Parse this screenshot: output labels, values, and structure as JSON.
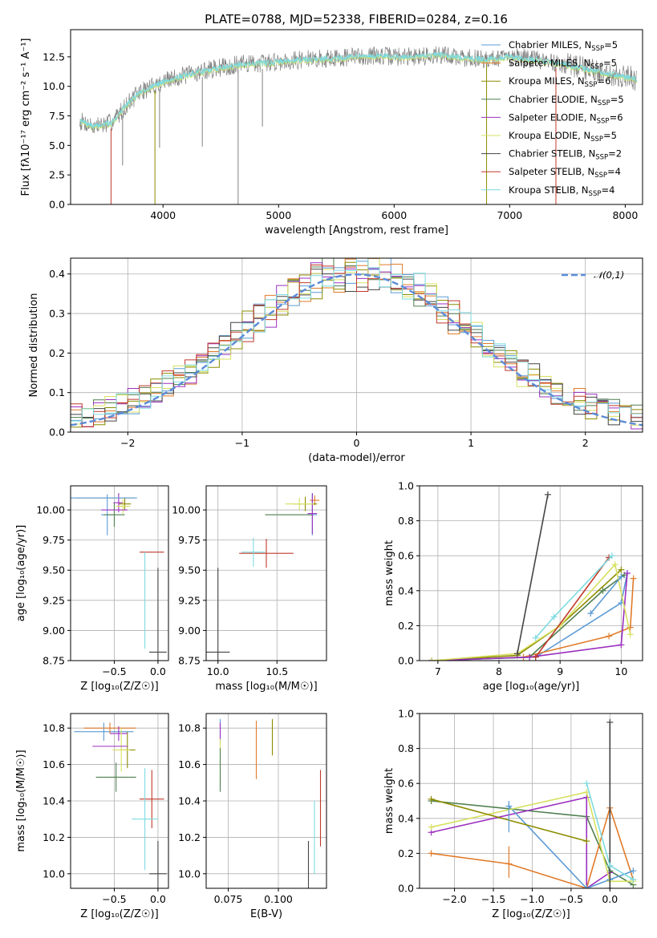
{
  "figure": {
    "title": "PLATE=0788, MJD=52338, FIBERID=0284, z=0.16"
  },
  "models": [
    {
      "name": "Chabrier MILES",
      "nssp": "5",
      "color": "#5b9bd5"
    },
    {
      "name": "Salpeter MILES",
      "nssp": "5",
      "color": "#e07b2a"
    },
    {
      "name": "Kroupa MILES",
      "nssp": "6",
      "color": "#8c8c00"
    },
    {
      "name": "Chabrier ELODIE",
      "nssp": "5",
      "color": "#4f7f4f"
    },
    {
      "name": "Salpeter ELODIE",
      "nssp": "6",
      "color": "#9b30c0"
    },
    {
      "name": "Kroupa ELODIE",
      "nssp": "5",
      "color": "#d7e060"
    },
    {
      "name": "Chabrier STELIB",
      "nssp": "2",
      "color": "#444444"
    },
    {
      "name": "Salpeter STELIB",
      "nssp": "4",
      "color": "#c0392b"
    },
    {
      "name": "Kroupa STELIB",
      "nssp": "4",
      "color": "#7ddbe0"
    }
  ],
  "chart_data": [
    {
      "id": "spectrum",
      "type": "line",
      "xlabel": "wavelength [Angstrom, rest frame]",
      "ylabel": "Flux [fλ10⁻¹⁷ erg cm⁻² s⁻¹ A⁻¹]",
      "xlim": [
        3200,
        8150
      ],
      "ylim": [
        0,
        14.8
      ],
      "xticks": [
        4000,
        5000,
        6000,
        7000,
        8000
      ],
      "yticks": [
        0.0,
        2.5,
        5.0,
        7.5,
        10.0,
        12.5
      ],
      "grid": false,
      "legend_position": "right",
      "data_color": "#808080",
      "model_color": "#7ddbe0",
      "continuum": {
        "x": [
          3300,
          3400,
          3550,
          3700,
          3800,
          3950,
          4100,
          4300,
          4500,
          4700,
          4900,
          5100,
          5300,
          5500,
          5800,
          6100,
          6400,
          6600,
          6800,
          7000,
          7200,
          7400,
          7600,
          7800,
          8000,
          8100
        ],
        "y": [
          7.0,
          6.6,
          6.9,
          8.6,
          9.5,
          10.2,
          10.7,
          11.2,
          11.6,
          11.9,
          12.0,
          12.2,
          12.3,
          12.4,
          12.6,
          12.5,
          12.7,
          12.4,
          12.3,
          12.5,
          12.3,
          12.0,
          11.6,
          11.2,
          10.8,
          10.6
        ]
      },
      "noise_amplitude": 0.8,
      "absorption_lines": [
        {
          "x": 3550,
          "y": 0.0,
          "color": "#c0392b"
        },
        {
          "x": 3650,
          "y": 3.3,
          "color": "#808080"
        },
        {
          "x": 3930,
          "y": 0.0,
          "color": "#8c8c00"
        },
        {
          "x": 3970,
          "y": 4.8,
          "color": "#808080"
        },
        {
          "x": 4340,
          "y": 4.9,
          "color": "#808080"
        },
        {
          "x": 4650,
          "y": 0.0,
          "color": "#808080"
        },
        {
          "x": 4860,
          "y": 6.6,
          "color": "#808080"
        },
        {
          "x": 6800,
          "y": 0.0,
          "color": "#8c8c00"
        },
        {
          "x": 7400,
          "y": 0.0,
          "color": "#c0392b"
        }
      ]
    },
    {
      "id": "residuals",
      "type": "histogram",
      "xlabel": "(data-model)/error",
      "ylabel": "Normed distribution",
      "xlim": [
        -2.5,
        2.5
      ],
      "ylim": [
        0,
        0.44
      ],
      "xticks": [
        -2,
        -1,
        0,
        1,
        2
      ],
      "yticks": [
        0.0,
        0.1,
        0.2,
        0.3,
        0.4
      ],
      "grid": true,
      "legend": "𝒩(0,1)",
      "legend_position": "top-right",
      "normal_curve": {
        "mean": 0,
        "sigma": 1,
        "color": "#5b8bd8"
      },
      "bin_width": 0.1,
      "spread": 0.035
    },
    {
      "id": "age-vs-z",
      "type": "scatter",
      "xlabel": "Z [log₁₀(Z/Z☉)]",
      "ylabel": "age  [log₁₀(age/yr)]",
      "xlim": [
        -1.0,
        0.12
      ],
      "ylim": [
        8.75,
        10.2
      ],
      "xticks": [
        -0.5,
        0.0
      ],
      "yticks": [
        8.75,
        9.0,
        9.25,
        9.5,
        9.75,
        10.0
      ],
      "grid": true,
      "points": [
        {
          "m": 0,
          "x": -0.58,
          "y": 9.96,
          "xe": 0.07,
          "ye": 0.17
        },
        {
          "m": 1,
          "x": -0.6,
          "y": 10.1,
          "xe": 0.34,
          "ye": 0.0
        },
        {
          "m": 2,
          "x": -0.38,
          "y": 10.05,
          "xe": 0.07,
          "ye": 0.05
        },
        {
          "m": 3,
          "x": -0.5,
          "y": 9.96,
          "xe": 0.12,
          "ye": 0.1
        },
        {
          "m": 4,
          "x": -0.45,
          "y": 10.06,
          "xe": 0.06,
          "ye": 0.08
        },
        {
          "m": 5,
          "x": -0.4,
          "y": 10.03,
          "xe": 0.08,
          "ye": 0.06
        },
        {
          "m": 6,
          "x": 0.0,
          "y": 8.82,
          "xe": 0.1,
          "ye": 0.7
        },
        {
          "m": 7,
          "x": -0.07,
          "y": 9.65,
          "xe": 0.14,
          "ye": 0.0
        },
        {
          "m": 8,
          "x": -0.15,
          "y": 9.25,
          "xe": 0.0,
          "ye": 0.4
        },
        {
          "m": 0,
          "x": -0.62,
          "y": 10.1,
          "xe": 0.38,
          "ye": 0.0
        },
        {
          "m": 4,
          "x": -0.5,
          "y": 10.0,
          "xe": 0.15,
          "ye": 0.0
        }
      ]
    },
    {
      "id": "age-vs-mass",
      "type": "scatter",
      "xlabel": "mass [log₁₀(M/M☉)]",
      "ylabel": "",
      "xlim": [
        9.9,
        10.92
      ],
      "ylim": [
        8.75,
        10.2
      ],
      "xticks": [
        10.0,
        10.5
      ],
      "yticks": [
        8.75,
        9.0,
        9.25,
        9.5,
        9.75,
        10.0
      ],
      "grid": true,
      "points": [
        {
          "m": 0,
          "x": 10.8,
          "y": 9.96,
          "xe": 0.04,
          "ye": 0.17
        },
        {
          "m": 1,
          "x": 10.82,
          "y": 10.08,
          "xe": 0.04,
          "ye": 0.04
        },
        {
          "m": 2,
          "x": 10.74,
          "y": 10.05,
          "xe": 0.1,
          "ye": 0.06
        },
        {
          "m": 3,
          "x": 10.6,
          "y": 9.96,
          "xe": 0.2,
          "ye": 0.0
        },
        {
          "m": 4,
          "x": 10.8,
          "y": 9.97,
          "xe": 0.04,
          "ye": 0.17
        },
        {
          "m": 5,
          "x": 10.69,
          "y": 10.05,
          "xe": 0.12,
          "ye": 0.05
        },
        {
          "m": 6,
          "x": 10.0,
          "y": 8.82,
          "xe": 0.1,
          "ye": 0.7
        },
        {
          "m": 7,
          "x": 10.41,
          "y": 9.64,
          "xe": 0.23,
          "ye": 0.12
        },
        {
          "m": 8,
          "x": 10.3,
          "y": 9.65,
          "xe": 0.1,
          "ye": 0.12
        }
      ]
    },
    {
      "id": "massweight-vs-age",
      "type": "line",
      "xlabel": "age  [log₁₀(age/yr)]",
      "ylabel": "mass weight",
      "xlim": [
        6.7,
        10.35
      ],
      "ylim": [
        0,
        1.0
      ],
      "xticks": [
        7,
        8,
        9,
        10
      ],
      "yticks": [
        0.0,
        0.2,
        0.4,
        0.6,
        0.8,
        1.0
      ],
      "grid": true,
      "series": [
        {
          "m": 0,
          "x": [
            6.9,
            8.6,
            10.0,
            10.1
          ],
          "y": [
            0.0,
            0.02,
            0.33,
            0.5
          ]
        },
        {
          "m": 1,
          "x": [
            6.9,
            8.4,
            9.8,
            10.15,
            10.2
          ],
          "y": [
            0.0,
            0.02,
            0.14,
            0.19,
            0.47
          ]
        },
        {
          "m": 2,
          "x": [
            6.9,
            8.3,
            9.0,
            10.0
          ],
          "y": [
            0.0,
            0.03,
            0.2,
            0.52
          ]
        },
        {
          "m": 3,
          "x": [
            6.9,
            8.5,
            9.7,
            10.05
          ],
          "y": [
            0.0,
            0.02,
            0.4,
            0.49
          ]
        },
        {
          "m": 4,
          "x": [
            6.9,
            8.5,
            10.0,
            10.1
          ],
          "y": [
            0.0,
            0.02,
            0.09,
            0.5
          ]
        },
        {
          "m": 5,
          "x": [
            6.9,
            8.3,
            9.0,
            9.9,
            10.15
          ],
          "y": [
            0.0,
            0.04,
            0.2,
            0.55,
            0.15
          ]
        },
        {
          "m": 6,
          "x": [
            8.3,
            8.8
          ],
          "y": [
            0.04,
            0.95
          ]
        },
        {
          "m": 7,
          "x": [
            8.6,
            9.8
          ],
          "y": [
            0.02,
            0.59
          ]
        },
        {
          "m": 8,
          "x": [
            8.6,
            8.9,
            9.85
          ],
          "y": [
            0.13,
            0.25,
            0.6
          ]
        },
        {
          "m": 0,
          "x": [
            9.5,
            10.0
          ],
          "y": [
            0.27,
            0.48
          ]
        }
      ]
    },
    {
      "id": "mass-vs-z",
      "type": "scatter",
      "xlabel": "Z [log₁₀(Z/Z☉)]",
      "ylabel": "mass [log₁₀(M/M☉)]",
      "xlim": [
        -1.0,
        0.12
      ],
      "ylim": [
        9.92,
        10.88
      ],
      "xticks": [
        -0.5,
        0.0
      ],
      "yticks": [
        10.0,
        10.2,
        10.4,
        10.6,
        10.8
      ],
      "grid": true,
      "points": [
        {
          "m": 0,
          "x": -0.62,
          "y": 10.78,
          "xe": 0.34,
          "ye": 0.05
        },
        {
          "m": 1,
          "x": -0.55,
          "y": 10.8,
          "xe": 0.3,
          "ye": 0.03
        },
        {
          "m": 2,
          "x": -0.35,
          "y": 10.68,
          "xe": 0.09,
          "ye": 0.1
        },
        {
          "m": 3,
          "x": -0.48,
          "y": 10.53,
          "xe": 0.23,
          "ye": 0.08
        },
        {
          "m": 4,
          "x": -0.45,
          "y": 10.77,
          "xe": 0.1,
          "ye": 0.04
        },
        {
          "m": 5,
          "x": -0.42,
          "y": 10.68,
          "xe": 0.1,
          "ye": 0.12
        },
        {
          "m": 6,
          "x": 0.0,
          "y": 10.0,
          "xe": 0.1,
          "ye": 0.18
        },
        {
          "m": 7,
          "x": -0.07,
          "y": 10.41,
          "xe": 0.14,
          "ye": 0.16
        },
        {
          "m": 8,
          "x": -0.15,
          "y": 10.3,
          "xe": 0.15,
          "ye": 0.28
        },
        {
          "m": 4,
          "x": -0.55,
          "y": 10.7,
          "xe": 0.2,
          "ye": 0.0
        }
      ]
    },
    {
      "id": "mass-vs-ebv",
      "type": "scatter",
      "xlabel": "E(B-V)",
      "ylabel": "",
      "xlim": [
        0.064,
        0.124
      ],
      "ylim": [
        9.92,
        10.88
      ],
      "xticks": [
        0.075,
        0.1
      ],
      "yticks": [
        10.0,
        10.2,
        10.4,
        10.6,
        10.8
      ],
      "grid": true,
      "points": [
        {
          "m": 0,
          "x": 0.071,
          "y": 10.8,
          "xe": 0,
          "ye": 0.05
        },
        {
          "m": 4,
          "x": 0.071,
          "y": 10.77,
          "xe": 0,
          "ye": 0.06
        },
        {
          "m": 5,
          "x": 0.071,
          "y": 10.62,
          "xe": 0,
          "ye": 0.12
        },
        {
          "m": 3,
          "x": 0.071,
          "y": 10.57,
          "xe": 0,
          "ye": 0.12
        },
        {
          "m": 1,
          "x": 0.089,
          "y": 10.68,
          "xe": 0,
          "ye": 0.16
        },
        {
          "m": 2,
          "x": 0.097,
          "y": 10.75,
          "xe": 0,
          "ye": 0.1
        },
        {
          "m": 6,
          "x": 0.115,
          "y": 10.0,
          "xe": 0,
          "ye": 0.18
        },
        {
          "m": 8,
          "x": 0.118,
          "y": 10.2,
          "xe": 0,
          "ye": 0.2
        },
        {
          "m": 7,
          "x": 0.121,
          "y": 10.36,
          "xe": 0,
          "ye": 0.21
        }
      ]
    },
    {
      "id": "massweight-vs-z",
      "type": "line",
      "xlabel": "Z [log₁₀(Z/Z☉)]",
      "ylabel": "mass weight",
      "xlim": [
        -2.45,
        0.42
      ],
      "ylim": [
        0,
        1.0
      ],
      "xticks": [
        -2.0,
        -1.5,
        -1.0,
        -0.5,
        0.0
      ],
      "yticks": [
        0.0,
        0.2,
        0.4,
        0.6,
        0.8,
        1.0
      ],
      "grid": true,
      "series": [
        {
          "m": 3,
          "x": [
            -2.3,
            -0.3,
            0.0,
            0.3
          ],
          "y": [
            0.5,
            0.41,
            0.1,
            0.02
          ]
        },
        {
          "m": 4,
          "x": [
            -2.3,
            -0.3,
            -0.3,
            0.0
          ],
          "y": [
            0.32,
            0.52,
            0.0,
            0.09
          ]
        },
        {
          "m": 1,
          "x": [
            -2.3,
            -1.3,
            -0.3,
            0.0,
            0.3
          ],
          "y": [
            0.2,
            0.14,
            0.0,
            0.46,
            0.05
          ]
        },
        {
          "m": 0,
          "x": [
            -1.3,
            -0.3,
            0.0,
            0.3
          ],
          "y": [
            0.47,
            0.0,
            0.05,
            0.1
          ]
        },
        {
          "m": 5,
          "x": [
            -2.3,
            -0.3,
            0.0,
            0.3
          ],
          "y": [
            0.35,
            0.55,
            0.04,
            0.04
          ]
        },
        {
          "m": 6,
          "x": [
            0.0,
            0.0
          ],
          "y": [
            0.0,
            0.95
          ]
        },
        {
          "m": 8,
          "x": [
            -0.3,
            0.0,
            0.3
          ],
          "y": [
            0.6,
            0.13,
            0.05
          ]
        },
        {
          "m": 2,
          "x": [
            -2.3,
            -0.3
          ],
          "y": [
            0.51,
            0.27
          ]
        }
      ],
      "extra_errbars": [
        {
          "m": 0,
          "x": -1.3,
          "y": 0.41,
          "ye": 0.09
        },
        {
          "m": 6,
          "x": 0.0,
          "y": 0.24,
          "ye": 0.0
        },
        {
          "m": 1,
          "x": -1.3,
          "y": 0.15,
          "ye": 0.0
        }
      ]
    }
  ]
}
